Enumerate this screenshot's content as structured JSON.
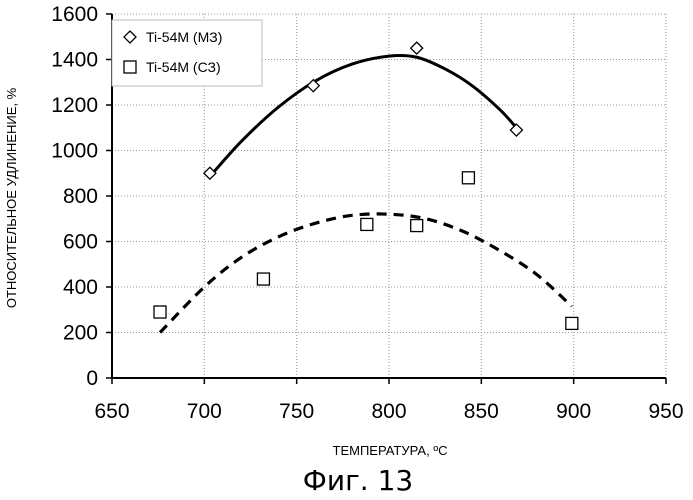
{
  "chart_data": {
    "type": "scatter",
    "xlabel": "ТЕМПЕРАТУРА, ºC",
    "ylabel": "ОТНОСИТЕЛЬНОЕ УДЛИНЕНИЕ, %",
    "xlim": [
      650,
      950
    ],
    "ylim": [
      0,
      1600
    ],
    "xticks": [
      650,
      700,
      750,
      800,
      850,
      900,
      950
    ],
    "yticks": [
      0,
      200,
      400,
      600,
      800,
      1000,
      1200,
      1400,
      1600
    ],
    "grid": true,
    "legend_position": "top-left",
    "series": [
      {
        "name": "Ti-54M (МЗ)",
        "marker": "diamond",
        "x": [
          703,
          759,
          815,
          869
        ],
        "y": [
          900,
          1285,
          1450,
          1090
        ],
        "trend": {
          "style": "solid",
          "x": [
            704,
            720,
            740,
            760,
            780,
            800,
            815,
            830,
            845,
            860,
            869
          ],
          "y": [
            895,
            1040,
            1190,
            1305,
            1380,
            1415,
            1410,
            1360,
            1285,
            1180,
            1100
          ]
        }
      },
      {
        "name": "Ti-54M (СЗ)",
        "marker": "square",
        "x": [
          676,
          732,
          788,
          815,
          843,
          899
        ],
        "y": [
          290,
          435,
          675,
          670,
          880,
          240
        ],
        "trend": {
          "style": "dashed",
          "x": [
            676,
            700,
            720,
            740,
            760,
            780,
            800,
            820,
            840,
            860,
            880,
            899
          ],
          "y": [
            200,
            400,
            530,
            620,
            680,
            715,
            720,
            700,
            645,
            560,
            455,
            315
          ]
        }
      }
    ]
  },
  "caption": "Фиг. 13",
  "colors": {
    "background": "#ffffff",
    "ink": "#000000",
    "grid": "#9a9a9a"
  }
}
